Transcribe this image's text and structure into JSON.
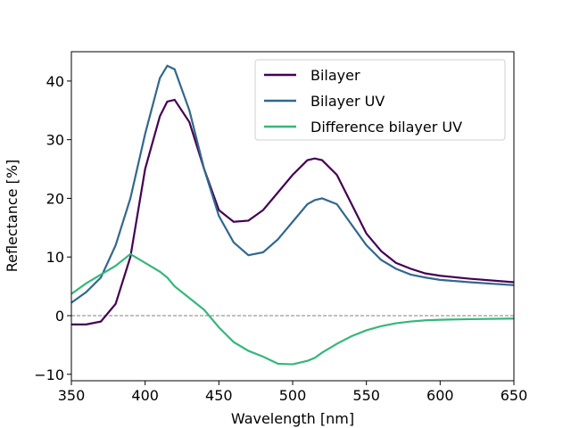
{
  "chart_data": {
    "type": "line",
    "xlabel": "Wavelength [nm]",
    "ylabel": "Reflectance [%]",
    "x": [
      350,
      360,
      370,
      380,
      390,
      400,
      410,
      415,
      420,
      430,
      440,
      450,
      460,
      470,
      480,
      490,
      500,
      510,
      515,
      520,
      530,
      540,
      550,
      560,
      570,
      580,
      590,
      600,
      620,
      650
    ],
    "series": [
      {
        "name": "Bilayer",
        "color": "#440154",
        "values": [
          -1.5,
          -1.5,
          -1,
          2,
          10,
          25,
          34,
          36.5,
          36.8,
          33,
          25,
          18,
          16,
          16.2,
          18,
          21,
          24,
          26.5,
          26.8,
          26.5,
          24,
          19,
          14,
          11,
          9,
          8,
          7.2,
          6.8,
          6.3,
          5.7
        ]
      },
      {
        "name": "Bilayer UV",
        "color": "#31688e",
        "values": [
          2.2,
          4,
          6.5,
          12,
          20,
          31,
          40.5,
          42.6,
          42,
          35,
          25,
          17,
          12.5,
          10.3,
          10.8,
          13,
          16,
          19,
          19.7,
          20,
          19,
          15.5,
          12,
          9.5,
          8,
          7,
          6.5,
          6.1,
          5.7,
          5.2
        ]
      },
      {
        "name": "Difference bilayer UV",
        "color": "#35b779",
        "values": [
          3.7,
          5.5,
          7,
          8.5,
          10.5,
          9,
          7.5,
          6.5,
          5,
          3,
          1,
          -2,
          -4.5,
          -6,
          -7,
          -8.2,
          -8.3,
          -7.7,
          -7.2,
          -6.3,
          -4.8,
          -3.5,
          -2.5,
          -1.8,
          -1.3,
          -1,
          -0.8,
          -0.7,
          -0.6,
          -0.5
        ]
      }
    ],
    "xlim": [
      350,
      650
    ],
    "xticks": [
      350,
      400,
      450,
      500,
      550,
      600,
      650
    ],
    "ylim": [
      -11.1,
      45
    ],
    "yticks": [
      {
        "value": -10,
        "label": "−10"
      },
      0,
      10,
      20,
      30,
      40
    ],
    "reference_line": 0,
    "legend": "upper right",
    "grid": false
  }
}
